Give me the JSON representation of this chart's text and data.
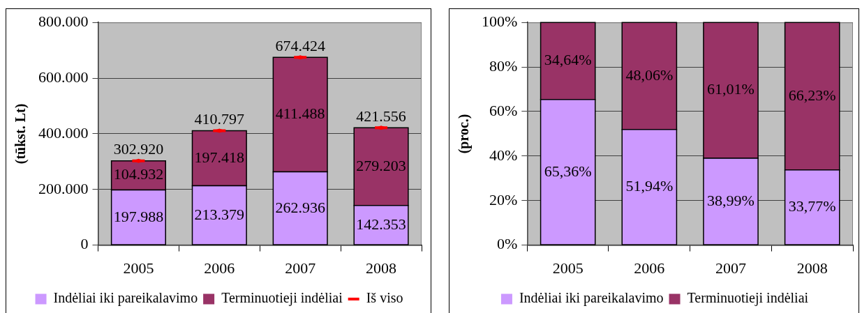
{
  "chart_data": [
    {
      "type": "bar",
      "ylabel": "(tūkst. Lt)",
      "categories": [
        "2005",
        "2006",
        "2007",
        "2008"
      ],
      "stacked": true,
      "series": [
        {
          "name": "Indėliai iki pareikalavimo",
          "color": "#cc99ff",
          "values": [
            197988,
            213379,
            262936,
            142353
          ],
          "value_labels": [
            "197.988",
            "213.379",
            "262.936",
            "142.353"
          ]
        },
        {
          "name": "Terminuotieji indėliai",
          "color": "#993366",
          "values": [
            104932,
            197418,
            411488,
            279203
          ],
          "value_labels": [
            "104.932",
            "197.418",
            "411.488",
            "279.203"
          ]
        },
        {
          "name": "Iš viso",
          "type": "scatter",
          "color": "#ff0000",
          "values": [
            302920,
            410797,
            674424,
            421556
          ],
          "value_labels": [
            "302.920",
            "410.797",
            "674.424",
            "421.556"
          ]
        }
      ],
      "ylim": [
        0,
        800000
      ],
      "yticks": [
        0,
        {
          "value": 200000,
          "label": "200.000"
        },
        {
          "value": 400000,
          "label": "400.000"
        },
        {
          "value": 600000,
          "label": "600.000"
        },
        {
          "value": 800000,
          "label": "800.000"
        }
      ],
      "grid": "y",
      "legend": "bottom"
    },
    {
      "type": "bar",
      "ylabel": "(proc.)",
      "categories": [
        "2005",
        "2006",
        "2007",
        "2008"
      ],
      "stacked": true,
      "series": [
        {
          "name": "Indėliai iki pareikalavimo",
          "color": "#cc99ff",
          "values": [
            65.36,
            51.94,
            38.99,
            33.77
          ],
          "value_labels": [
            "65,36%",
            "51,94%",
            "38,99%",
            "33,77%"
          ]
        },
        {
          "name": "Terminuotieji indėliai",
          "color": "#993366",
          "values": [
            34.64,
            48.06,
            61.01,
            66.23
          ],
          "value_labels": [
            "34,64%",
            "48,06%",
            "61,01%",
            "66,23%"
          ]
        }
      ],
      "ylim": [
        0,
        100
      ],
      "yticks": [
        {
          "value": 0,
          "label": "0%"
        },
        {
          "value": 20,
          "label": "20%"
        },
        {
          "value": 40,
          "label": "40%"
        },
        {
          "value": 60,
          "label": "60%"
        },
        {
          "value": 80,
          "label": "80%"
        },
        {
          "value": 100,
          "label": "100%"
        }
      ],
      "grid": "y",
      "legend": "bottom"
    }
  ]
}
